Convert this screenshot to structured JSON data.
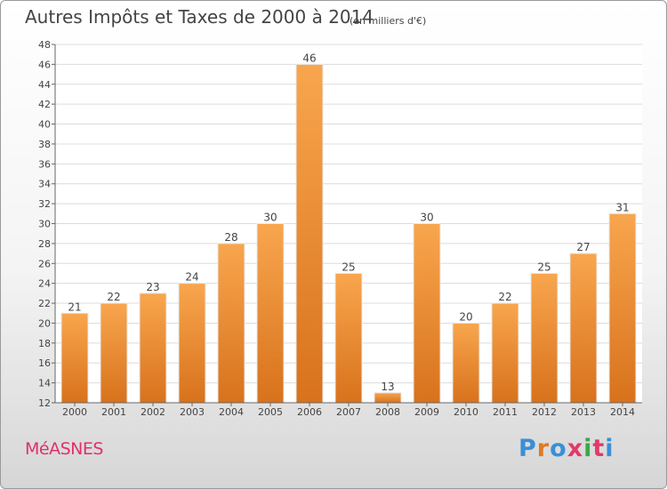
{
  "title": "Autres Impôts et Taxes de 2000 à 2014",
  "unit_label": "(en milliers d'€)",
  "commune": "MéASNES",
  "brand": {
    "text": "Proxiti",
    "letter_colors": [
      "#3a8fd6",
      "#e07a20",
      "#3a8fd6",
      "#e03a6a",
      "#3aa84a",
      "#e03a6a",
      "#3a8fd6"
    ]
  },
  "colors": {
    "bar_top": "#f8a64e",
    "bar_bottom": "#d8721c",
    "title": "#444444",
    "commune": "#e0306a"
  },
  "chart_data": {
    "type": "bar",
    "categories": [
      "2000",
      "2001",
      "2002",
      "2003",
      "2004",
      "2005",
      "2006",
      "2007",
      "2008",
      "2009",
      "2010",
      "2011",
      "2012",
      "2013",
      "2014"
    ],
    "values": [
      21,
      22,
      23,
      24,
      28,
      30,
      46,
      25,
      13,
      30,
      20,
      22,
      25,
      27,
      31
    ],
    "ylim": [
      12,
      48
    ],
    "yticks": [
      12,
      14,
      16,
      18,
      20,
      22,
      24,
      26,
      28,
      30,
      32,
      34,
      36,
      38,
      40,
      42,
      44,
      46,
      48
    ],
    "grid": true
  }
}
